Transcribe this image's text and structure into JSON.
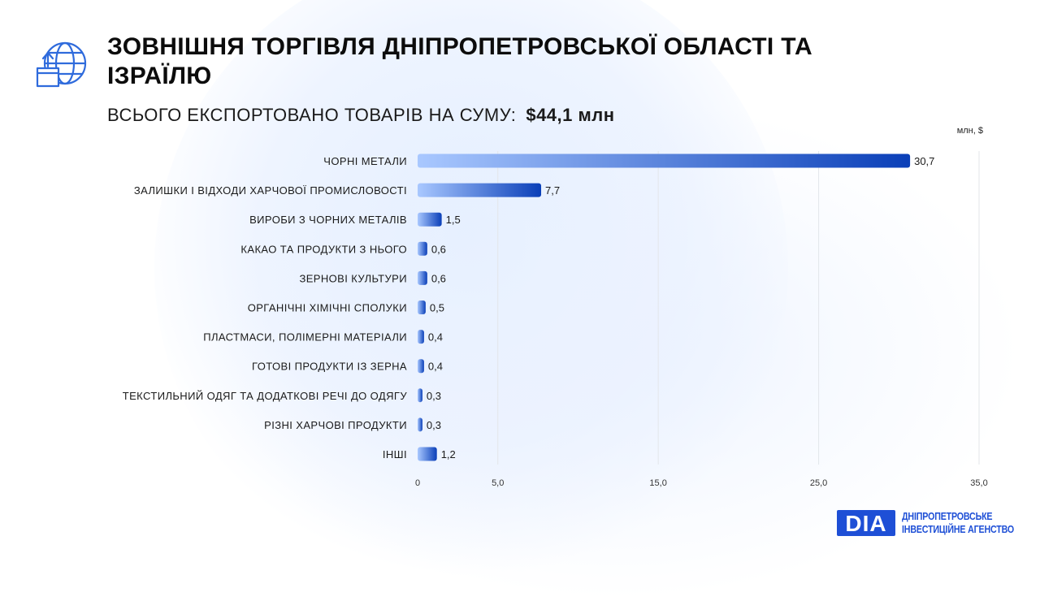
{
  "header": {
    "title": "ЗОВНІШНЯ ТОРГІВЛЯ ДНІПРОПЕТРОВСЬКОЇ ОБЛАСТІ ТА ІЗРАЇЛЮ",
    "subtitle_label": "ВСЬОГО ЕКСПОРТОВАНО ТОВАРІВ НА СУМУ:",
    "subtitle_amount": "$44,1 млн"
  },
  "icons": {
    "header_icon": "globe-box-export-icon"
  },
  "colors": {
    "bar_start": "#a9c8ff",
    "bar_end": "#0a3fb8",
    "grid": "#e3e6ea",
    "brand": "#1e4fd6"
  },
  "brand": {
    "logo_text": "DIA",
    "line1": "ДНІПРОПЕТРОВСЬКЕ",
    "line2": "ІНВЕСТИЦІЙНЕ АГЕНСТВО"
  },
  "chart_data": {
    "type": "bar",
    "orientation": "horizontal",
    "unit_label": "млн, $",
    "categories": [
      "ЧОРНІ МЕТАЛИ",
      "ЗАЛИШКИ І ВІДХОДИ ХАРЧОВОЇ ПРОМИСЛОВОСТІ",
      "ВИРОБИ З ЧОРНИХ МЕТАЛІВ",
      "КАКАО ТА ПРОДУКТИ З НЬОГО",
      "ЗЕРНОВІ КУЛЬТУРИ",
      "ОРГАНІЧНІ ХІМІЧНІ СПОЛУКИ",
      "ПЛАСТМАСИ, ПОЛІМЕРНІ МАТЕРІАЛИ",
      "ГОТОВІ ПРОДУКТИ ІЗ ЗЕРНА",
      "ТЕКСТИЛЬНИЙ ОДЯГ ТА ДОДАТКОВІ РЕЧІ ДО ОДЯГУ",
      "РІЗНІ ХАРЧОВІ ПРОДУКТИ",
      "ІНШІ"
    ],
    "values": [
      30.7,
      7.7,
      1.5,
      0.6,
      0.6,
      0.5,
      0.4,
      0.4,
      0.3,
      0.3,
      1.2
    ],
    "value_labels": [
      "30,7",
      "7,7",
      "1,5",
      "0,6",
      "0,6",
      "0,5",
      "0,4",
      "0,4",
      "0,3",
      "0,3",
      "1,2"
    ],
    "x_ticks": [
      0,
      5,
      15,
      25,
      35
    ],
    "x_tick_labels": [
      "0",
      "5,0",
      "15,0",
      "25,0",
      "35,0"
    ],
    "xlim": [
      0,
      35
    ],
    "grid": true
  }
}
